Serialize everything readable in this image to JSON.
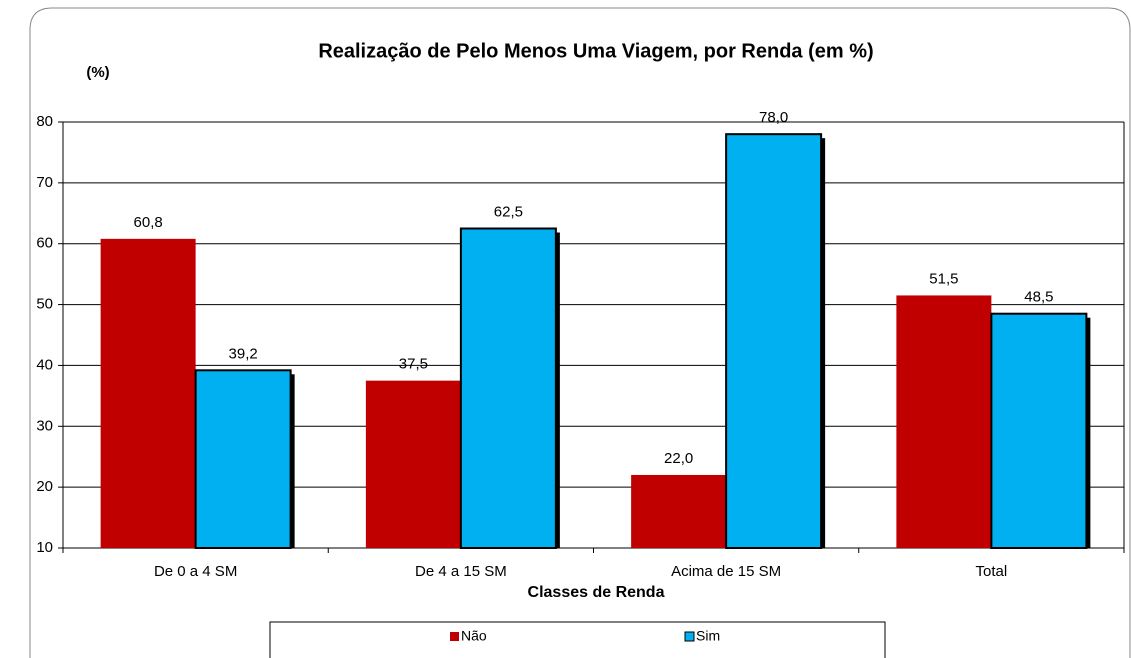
{
  "chart_data": {
    "type": "bar",
    "title": "Realização de Pelo Menos Uma Viagem, por Renda (em %)",
    "y_label": "(%)",
    "x_label": "Classes de Renda",
    "categories": [
      "De 0 a 4 SM",
      "De 4 a 15 SM",
      "Acima de 15 SM",
      "Total"
    ],
    "series": [
      {
        "name": "Não",
        "color": "#c00000",
        "values": [
          60.8,
          37.5,
          22.0,
          51.5
        ],
        "value_labels": [
          "60,8",
          "37,5",
          "22,0",
          "51,5"
        ]
      },
      {
        "name": "Sim",
        "color": "#00b0f0",
        "values": [
          39.2,
          62.5,
          78.0,
          48.5
        ],
        "value_labels": [
          "39,2",
          "62,5",
          "78,0",
          "48,5"
        ]
      }
    ],
    "ylim": [
      10,
      80
    ],
    "yticks": [
      10,
      20,
      30,
      40,
      50,
      60,
      70,
      80
    ],
    "grid": true,
    "legend": "bottom"
  }
}
